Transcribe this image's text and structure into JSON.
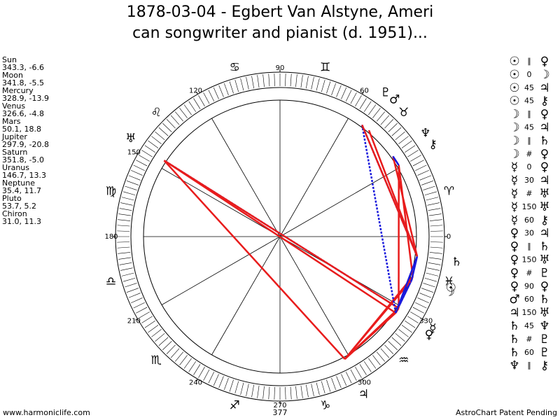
{
  "title": [
    "1878-03-04 - Egbert Van Alstyne, Ameri",
    "can songwriter and pianist (d. 1951)..."
  ],
  "planets": [
    {
      "name": "Sun",
      "glyph": "☉",
      "position": "343.3, -6.6"
    },
    {
      "name": "Moon",
      "glyph": "☽",
      "position": "341.8, -5.5"
    },
    {
      "name": "Mercury",
      "glyph": "☿",
      "position": "328.9, -13.9"
    },
    {
      "name": "Venus",
      "glyph": "♀",
      "position": "326.6, -4.8"
    },
    {
      "name": "Mars",
      "glyph": "♂",
      "position": "50.1, 18.8"
    },
    {
      "name": "Jupiter",
      "glyph": "♃",
      "position": "297.9, -20.8"
    },
    {
      "name": "Saturn",
      "glyph": "♄",
      "position": "351.8, -5.0"
    },
    {
      "name": "Uranus",
      "glyph": "♅",
      "position": "146.7, 13.3"
    },
    {
      "name": "Neptune",
      "glyph": "♆",
      "position": "35.4, 11.7"
    },
    {
      "name": "Pluto",
      "glyph": "♇",
      "position": "53.7, 5.2"
    },
    {
      "name": "Chiron",
      "glyph": "⚷",
      "position": "31.0, 11.3"
    }
  ],
  "aspects": [
    [
      "☉",
      "∥",
      "♀"
    ],
    [
      "☉",
      "0",
      "☽"
    ],
    [
      "☉",
      "45",
      "♃"
    ],
    [
      "☉",
      "45",
      "⚷"
    ],
    [
      "☽",
      "∥",
      "♀"
    ],
    [
      "☽",
      "45",
      "♃"
    ],
    [
      "☽",
      "∥",
      "♄"
    ],
    [
      "☽",
      "#",
      "♀"
    ],
    [
      "☿",
      "0",
      "♀"
    ],
    [
      "☿",
      "30",
      "♃"
    ],
    [
      "☿",
      "#",
      "♅"
    ],
    [
      "☿",
      "150",
      "♅"
    ],
    [
      "☿",
      "60",
      "⚷"
    ],
    [
      "♀",
      "30",
      "♃"
    ],
    [
      "♀",
      "∥",
      "♄"
    ],
    [
      "♀",
      "150",
      "♅"
    ],
    [
      "♀",
      "#",
      "♇"
    ],
    [
      "♀",
      "90",
      "♀"
    ],
    [
      "♂",
      "60",
      "♄"
    ],
    [
      "♃",
      "150",
      "♅"
    ],
    [
      "♄",
      "45",
      "♆"
    ],
    [
      "♄",
      "#",
      "♇"
    ],
    [
      "♄",
      "60",
      "♇"
    ],
    [
      "♆",
      "∥",
      "⚷"
    ]
  ],
  "signs": [
    "♈",
    "♉",
    "♊",
    "♋",
    "♌",
    "♍",
    "♎",
    "♏",
    "♐",
    "♑",
    "♒",
    "♓"
  ],
  "degree_ticks": [
    0,
    60,
    90,
    120,
    150,
    180,
    210,
    240,
    270,
    300,
    330
  ],
  "center_label": "377",
  "footer_left": "www.harmoniclife.com",
  "footer_right": "AstroChart Patent Pending"
}
